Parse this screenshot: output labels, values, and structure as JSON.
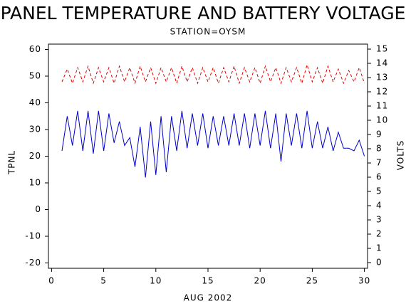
{
  "chart_data": {
    "type": "line",
    "title": "PANEL TEMPERATURE AND BATTERY VOLTAGE",
    "subtitle": "STATION=OYSM",
    "x_label": "AUG 2002",
    "y_label": "TPNL",
    "y2_label": "VOLTS",
    "x": [
      1,
      1.5,
      2,
      2.5,
      3,
      3.5,
      4,
      4.5,
      5,
      5.5,
      6,
      6.5,
      7,
      7.5,
      8,
      8.5,
      9,
      9.5,
      10,
      10.5,
      11,
      11.5,
      12,
      12.5,
      13,
      13.5,
      14,
      14.5,
      15,
      15.5,
      16,
      16.5,
      17,
      17.5,
      18,
      18.5,
      19,
      19.5,
      20,
      20.5,
      21,
      21.5,
      22,
      22.5,
      23,
      23.5,
      24,
      24.5,
      25,
      25.5,
      26,
      26.5,
      27,
      27.5,
      28,
      28.5,
      29,
      29.5,
      30
    ],
    "series": [
      {
        "name": "TPNL",
        "color": "#0000cc",
        "axis": "y",
        "values": [
          22,
          35,
          24,
          37,
          22,
          37,
          21,
          37,
          22,
          36,
          25,
          33,
          24,
          27,
          16,
          31,
          12,
          33,
          13,
          35,
          14,
          35,
          22,
          37,
          23,
          36,
          24,
          36,
          23,
          35,
          24,
          35,
          24,
          36,
          24,
          36,
          23,
          36,
          24,
          37,
          23,
          36,
          18,
          36,
          24,
          36,
          23,
          37,
          23,
          33,
          23,
          31,
          22,
          29,
          23,
          23,
          22,
          26,
          20
        ]
      },
      {
        "name": "VOLTS",
        "color": "#dd0000",
        "axis": "y2",
        "dashed": true,
        "values": [
          12.7,
          13.6,
          12.6,
          13.7,
          12.7,
          13.8,
          12.6,
          13.7,
          12.7,
          13.7,
          12.6,
          13.8,
          12.7,
          13.7,
          12.6,
          13.8,
          12.7,
          13.7,
          12.6,
          13.7,
          12.7,
          13.7,
          12.6,
          13.8,
          12.7,
          13.7,
          12.6,
          13.7,
          12.7,
          13.7,
          12.6,
          13.7,
          12.7,
          13.8,
          12.6,
          13.7,
          12.7,
          13.7,
          12.6,
          13.8,
          12.7,
          13.7,
          12.6,
          13.7,
          12.7,
          13.7,
          12.6,
          13.9,
          12.7,
          13.7,
          12.6,
          13.8,
          12.7,
          13.6,
          12.6,
          13.5,
          12.7,
          13.7,
          12.6
        ]
      }
    ],
    "xlim": [
      -0.3,
      30.3
    ],
    "xticks": [
      0,
      5,
      10,
      15,
      20,
      25,
      30
    ],
    "ylim": [
      -22,
      62
    ],
    "yticks": [
      -20,
      -10,
      0,
      10,
      20,
      30,
      40,
      50,
      60
    ],
    "y2lim": [
      -0.4,
      15.35
    ],
    "y2ticks": [
      0,
      1,
      2,
      3,
      4,
      5,
      6,
      7,
      8,
      9,
      10,
      11,
      12,
      13,
      14,
      15
    ]
  }
}
